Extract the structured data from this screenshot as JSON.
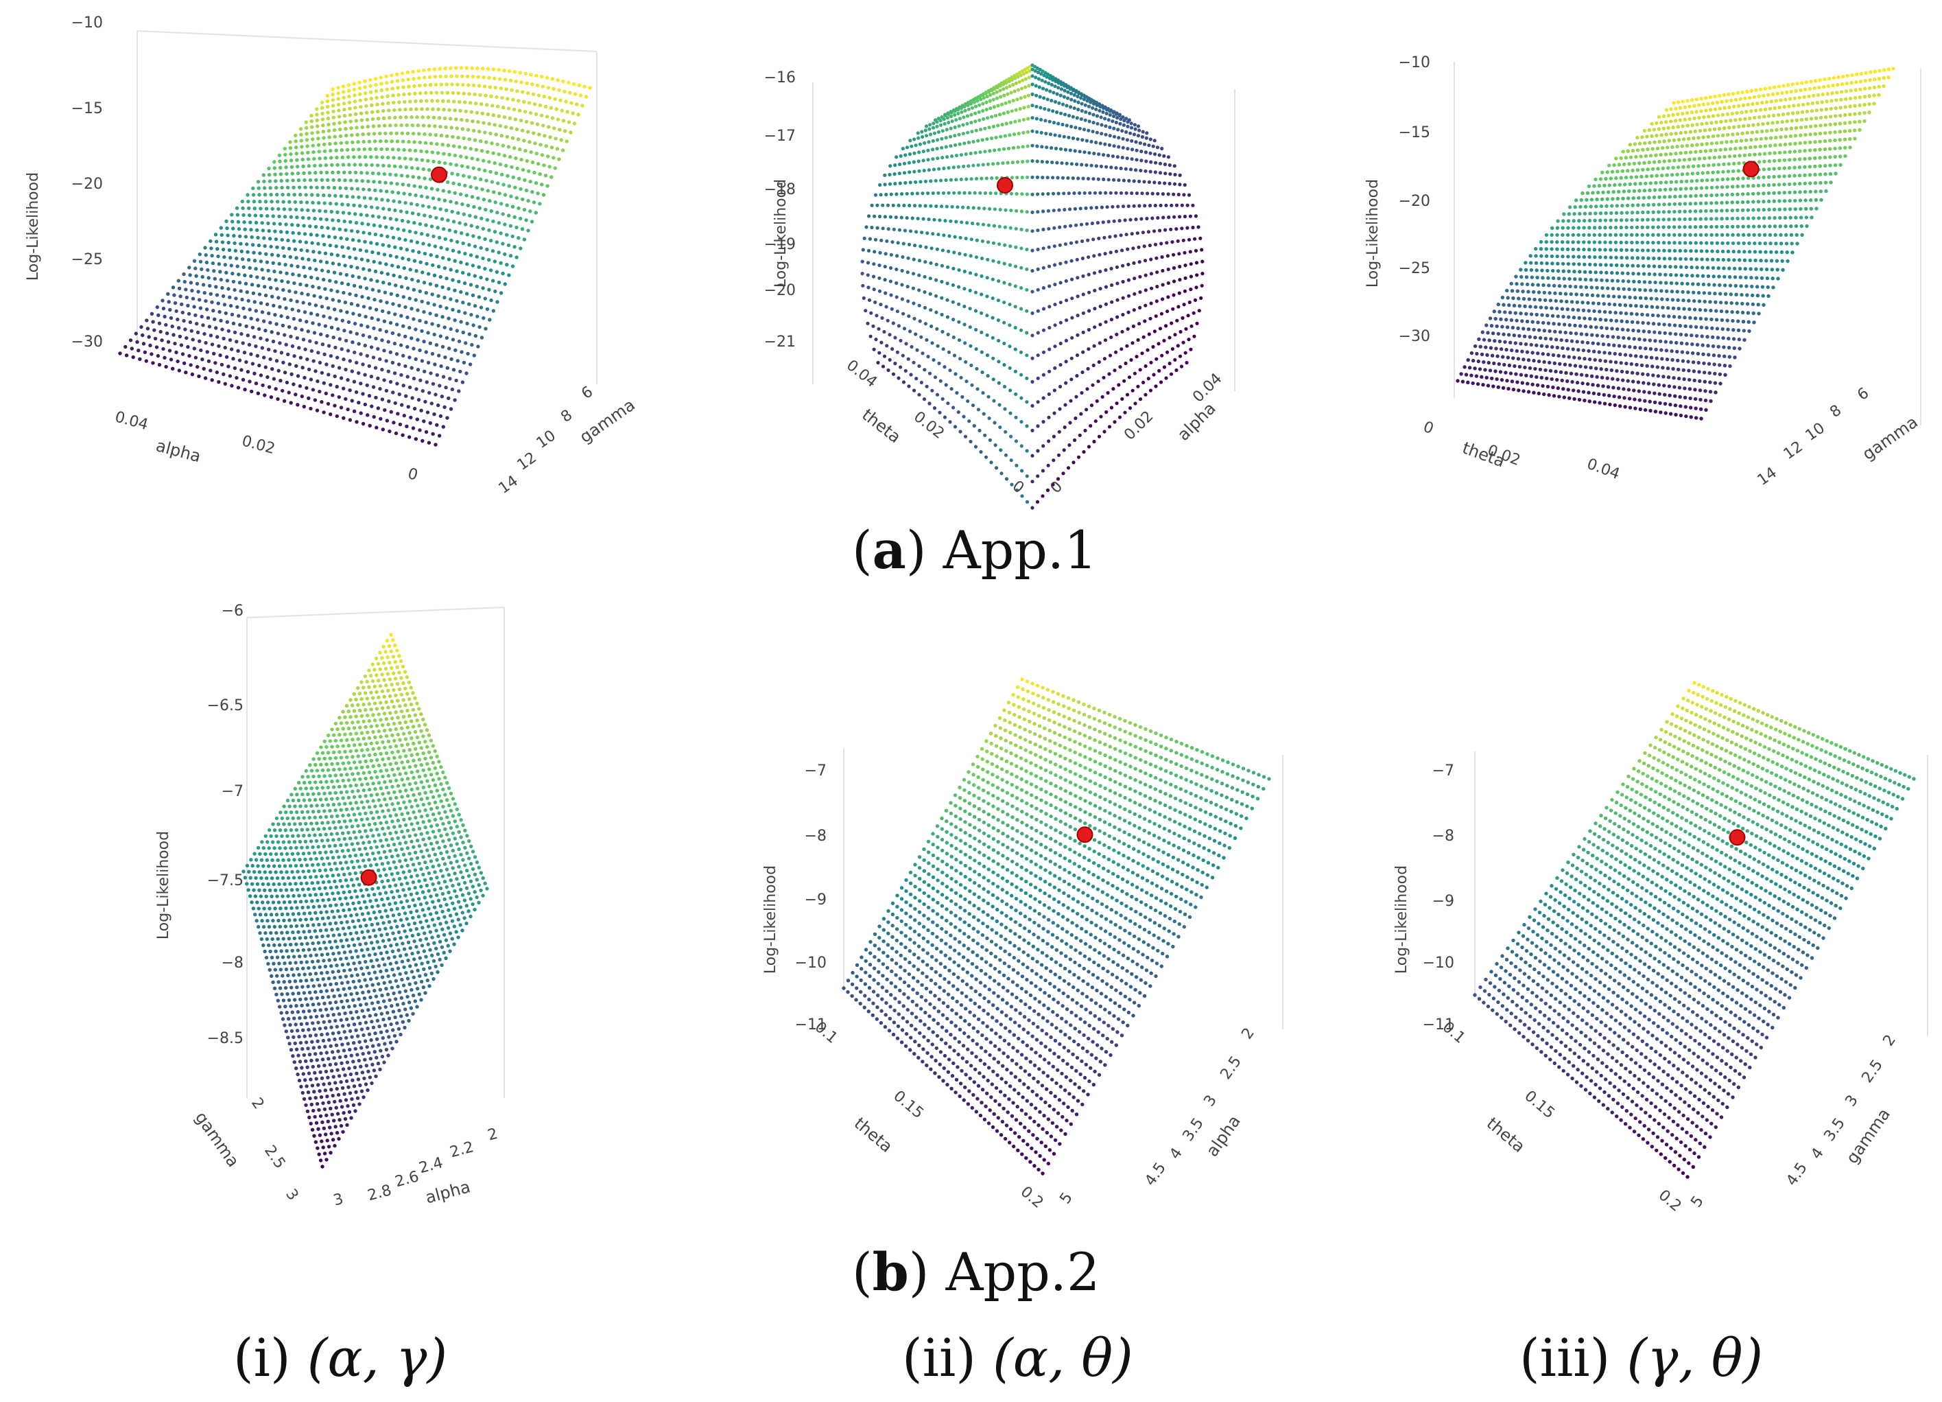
{
  "captions": {
    "row_a": {
      "letter": "a",
      "text": "App.1"
    },
    "row_b": {
      "letter": "b",
      "text": "App.2"
    },
    "col_labels": [
      {
        "roman": "(i)",
        "params": "(α, γ)"
      },
      {
        "roman": "(ii)",
        "params": "(α, θ)"
      },
      {
        "roman": "(iii)",
        "params": "(γ, θ)"
      }
    ]
  },
  "colors": {
    "colormap": [
      "#440154",
      "#3b528b",
      "#21918c",
      "#5ec962",
      "#fde725"
    ],
    "mle_marker": "#e41a1c",
    "grid": "#e3e3e3"
  },
  "chart_data": [
    {
      "id": "a1",
      "type": "scatter3d",
      "surface": "log-likelihood grid",
      "x": {
        "label": "alpha",
        "ticks": [
          "0.04",
          "0.02",
          "0"
        ],
        "range": [
          0,
          0.05
        ]
      },
      "y": {
        "label": "gamma",
        "ticks": [
          "6",
          "8",
          "10",
          "12",
          "14"
        ],
        "range": [
          5,
          15
        ]
      },
      "z": {
        "label": "Log-Likelihood",
        "ticks": [
          "−10",
          "−15",
          "−20",
          "−25",
          "−30"
        ],
        "range": [
          -31,
          -11
        ]
      },
      "mle_point": {
        "x": 0.02,
        "y": 8,
        "z": -14.5
      }
    },
    {
      "id": "a2",
      "type": "scatter3d",
      "surface": "log-likelihood grid",
      "x": {
        "label": "theta",
        "ticks": [
          "0.04",
          "0.02",
          "0"
        ],
        "range": [
          0,
          0.05
        ]
      },
      "y": {
        "label": "alpha",
        "ticks": [
          "0.04",
          "0.02",
          "0"
        ],
        "range": [
          0,
          0.05
        ]
      },
      "z": {
        "label": "Log-Likelihood",
        "ticks": [
          "−16",
          "−17",
          "−18",
          "−19",
          "−20",
          "−21"
        ],
        "range": [
          -21.2,
          -16
        ]
      },
      "mle_point": {
        "x": 0.03,
        "y": 0.01,
        "z": -17.8
      }
    },
    {
      "id": "a3",
      "type": "scatter3d",
      "surface": "log-likelihood grid",
      "x": {
        "label": "theta",
        "ticks": [
          "0",
          "0.02",
          "0.04"
        ],
        "range": [
          0,
          0.05
        ]
      },
      "y": {
        "label": "gamma",
        "ticks": [
          "6",
          "8",
          "10",
          "12",
          "14"
        ],
        "range": [
          5,
          15
        ]
      },
      "z": {
        "label": "Log-Likelihood",
        "ticks": [
          "−10",
          "−15",
          "−20",
          "−25",
          "−30"
        ],
        "range": [
          -31,
          -11
        ]
      },
      "mle_point": {
        "x": 0.02,
        "y": 8,
        "z": -15.5
      }
    },
    {
      "id": "b1",
      "type": "scatter3d",
      "surface": "log-likelihood grid",
      "x": {
        "label": "gamma",
        "ticks": [
          "2",
          "2.5",
          "3"
        ],
        "range": [
          2,
          3
        ]
      },
      "y": {
        "label": "alpha",
        "ticks": [
          "2",
          "2.2",
          "2.4",
          "2.6",
          "2.8",
          "3"
        ],
        "range": [
          2,
          3
        ]
      },
      "z": {
        "label": "Log-Likelihood",
        "ticks": [
          "−6",
          "−6.5",
          "−7",
          "−7.5",
          "−8",
          "−8.5"
        ],
        "range": [
          -8.9,
          -6.1
        ]
      },
      "mle_point": {
        "x": 2.5,
        "y": 2.5,
        "z": -7.7
      }
    },
    {
      "id": "b2",
      "type": "scatter3d",
      "surface": "log-likelihood grid",
      "x": {
        "label": "theta",
        "ticks": [
          "0.1",
          "0.15",
          "0.2"
        ],
        "range": [
          0.1,
          0.2
        ]
      },
      "y": {
        "label": "alpha",
        "ticks": [
          "2",
          "2.5",
          "3",
          "3.5",
          "4",
          "4.5",
          "5"
        ],
        "range": [
          2,
          5
        ]
      },
      "z": {
        "label": "Log-Likelihood",
        "ticks": [
          "−7",
          "−8",
          "−9",
          "−10",
          "−11"
        ],
        "range": [
          -11,
          -6.5
        ]
      },
      "mle_point": {
        "x": 0.15,
        "y": 3,
        "z": -7.3
      }
    },
    {
      "id": "b3",
      "type": "scatter3d",
      "surface": "log-likelihood grid",
      "x": {
        "label": "theta",
        "ticks": [
          "0.1",
          "0.15",
          "0.2"
        ],
        "range": [
          0.1,
          0.2
        ]
      },
      "y": {
        "label": "gamma",
        "ticks": [
          "2",
          "2.5",
          "3",
          "3.5",
          "4",
          "4.5",
          "5"
        ],
        "range": [
          2,
          5
        ]
      },
      "z": {
        "label": "Log-Likelihood",
        "ticks": [
          "−7",
          "−8",
          "−9",
          "−10",
          "−11"
        ],
        "range": [
          -11,
          -6.5
        ]
      },
      "mle_point": {
        "x": 0.15,
        "y": 3,
        "z": -7.2
      }
    }
  ]
}
